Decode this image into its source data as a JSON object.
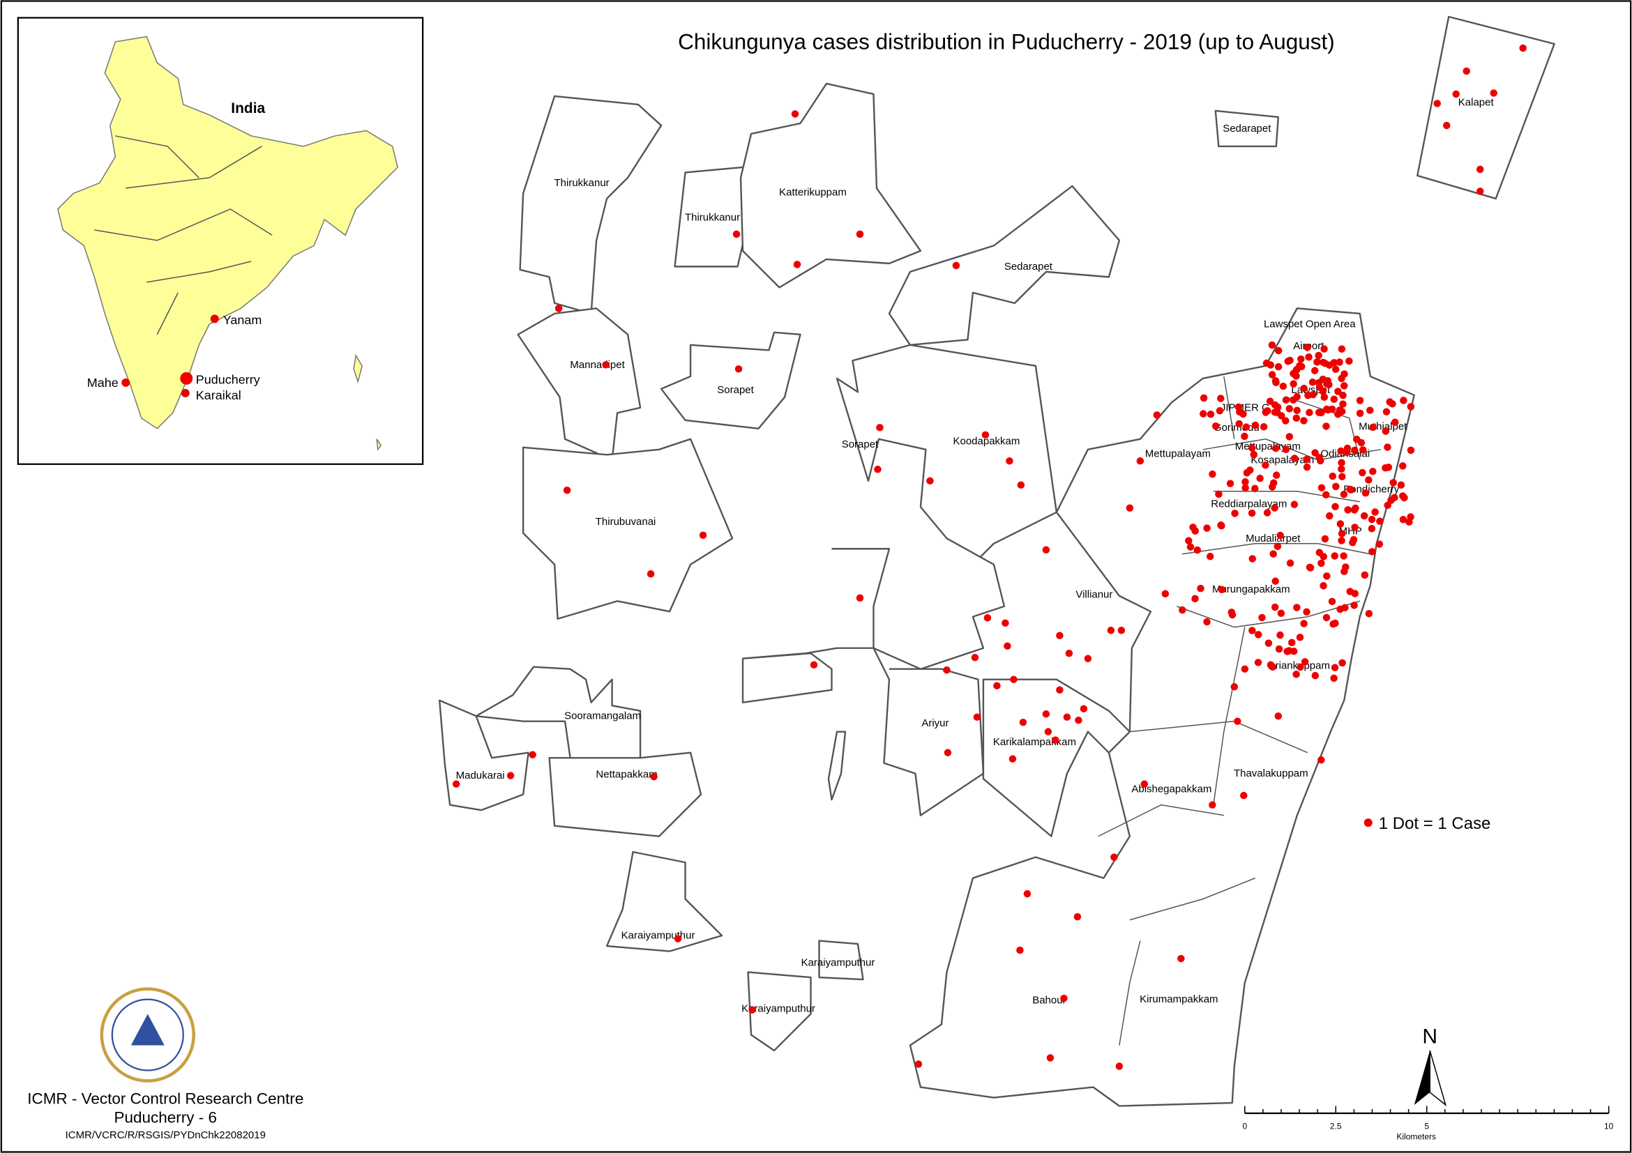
{
  "title": "Chikungunya cases distribution in Puducherry - 2019  (up to August)",
  "inset": {
    "title": "India",
    "places": [
      "Yanam",
      "Puducherry",
      "Karaikal",
      "Mahe"
    ]
  },
  "regions": [
    "Thirukkanur",
    "Thirukkanur",
    "Katterikuppam",
    "Sedarapet",
    "Kalapet",
    "Sedarapet",
    "Mannadipet",
    "Sorapet",
    "Lawspet Open Area",
    "Airport",
    "Lawspet",
    "JIPMER C",
    "Gorimedu",
    "Muthialpet",
    "Mettupalayam",
    "Mettupalayam",
    "Kosapalayam",
    "Odiansalai",
    "Sorapet",
    "Koodapakkam",
    "Pondicherry",
    "Reddiarpalayam",
    "Thirubuvanai",
    "Mudaliarpet",
    "MHP",
    "Villianur",
    "Murungapakkam",
    "Ariankuppam",
    "Sooramangalam",
    "Ariyur",
    "Karikalampakkam",
    "Madukarai",
    "Nettapakkam",
    "Abishegapakkam",
    "Thavalakuppam",
    "Karaiyamputhur",
    "Karaiyamputhur",
    "Karaiyamputhur",
    "Bahour",
    "Kirumampakkam"
  ],
  "legend": "1 Dot = 1 Case",
  "north_arrow": "N",
  "scale_bar": {
    "ticks": [
      0,
      2.5,
      5,
      10
    ],
    "unit": "Kilometers"
  },
  "footer": {
    "org": "ICMR - Vector Control Research Centre",
    "place": "Puducherry - 6",
    "ref": "ICMR/VCRC/R/RSGIS/PYDnChk22082019"
  }
}
